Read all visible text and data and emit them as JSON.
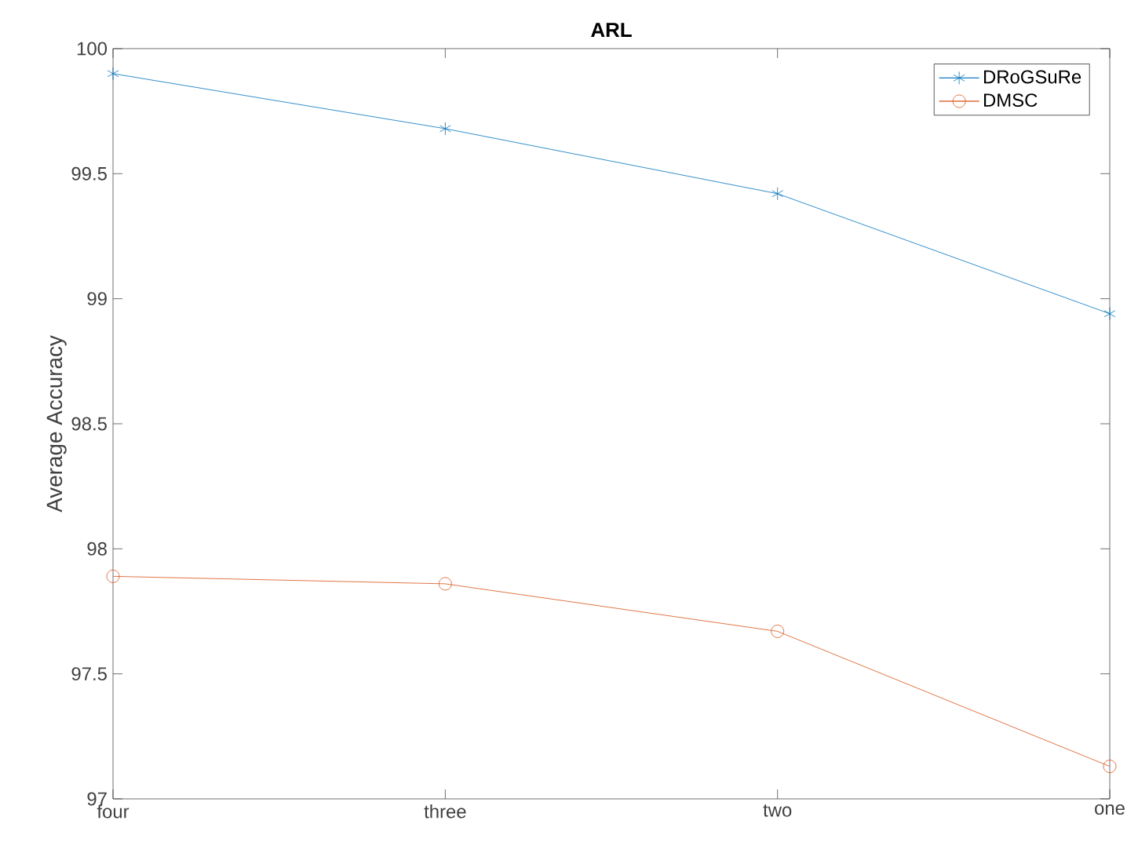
{
  "chart_data": {
    "type": "line",
    "title": "ARL",
    "ylabel": "Average Accuracy",
    "categories": [
      "four",
      "three",
      "two",
      "one"
    ],
    "series": [
      {
        "name": "DRoGSuRe",
        "color": "#0072bd",
        "marker": "cross",
        "values": [
          99.9,
          99.68,
          99.42,
          98.94
        ]
      },
      {
        "name": "DMSC",
        "color": "#d95319",
        "marker": "circle",
        "values": [
          97.89,
          97.86,
          97.67,
          97.13
        ]
      }
    ],
    "ylim": [
      97,
      100
    ],
    "yticks": [
      97,
      97.5,
      98,
      98.5,
      99,
      99.5,
      100
    ],
    "grid": false,
    "legend": "top right",
    "line_style": "solid"
  }
}
